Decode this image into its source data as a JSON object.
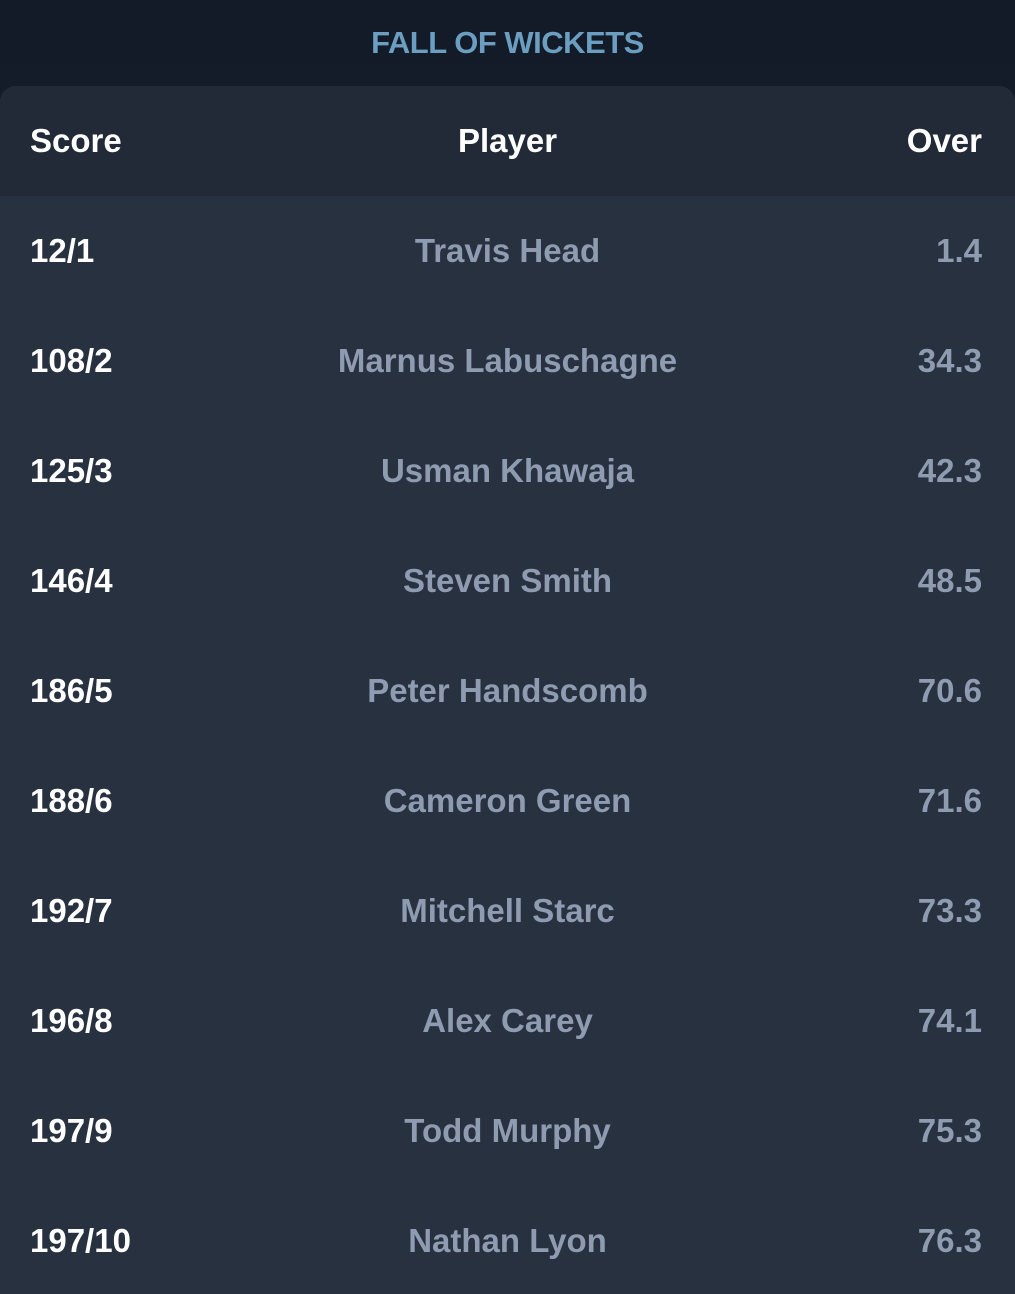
{
  "title": "FALL OF WICKETS",
  "columns": {
    "score": "Score",
    "player": "Player",
    "over": "Over"
  },
  "wickets": [
    {
      "score": "12/1",
      "player": "Travis Head",
      "over": "1.4"
    },
    {
      "score": "108/2",
      "player": "Marnus Labuschagne",
      "over": "34.3"
    },
    {
      "score": "125/3",
      "player": "Usman Khawaja",
      "over": "42.3"
    },
    {
      "score": "146/4",
      "player": "Steven Smith",
      "over": "48.5"
    },
    {
      "score": "186/5",
      "player": "Peter Handscomb",
      "over": "70.6"
    },
    {
      "score": "188/6",
      "player": "Cameron Green",
      "over": "71.6"
    },
    {
      "score": "192/7",
      "player": "Mitchell Starc",
      "over": "73.3"
    },
    {
      "score": "196/8",
      "player": "Alex Carey",
      "over": "74.1"
    },
    {
      "score": "197/9",
      "player": "Todd Murphy",
      "over": "75.3"
    },
    {
      "score": "197/10",
      "player": "Nathan Lyon",
      "over": "76.3"
    }
  ]
}
